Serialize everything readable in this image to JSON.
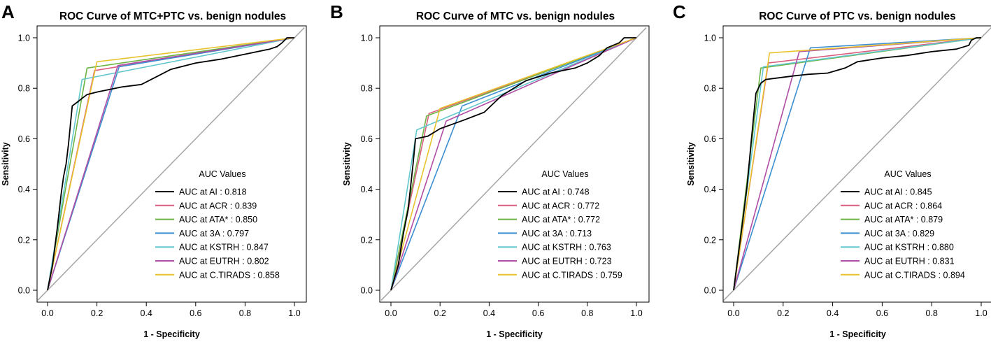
{
  "chart_data": [
    {
      "type": "line",
      "panel": "A",
      "title": "ROC Curve of MTC+PTC vs. benign nodules",
      "xlabel": "1 - Specificity",
      "ylabel": "Sensitivity",
      "xlim": [
        0,
        1
      ],
      "ylim": [
        0,
        1
      ],
      "x_ticks": [
        "0.0",
        "0.2",
        "0.4",
        "0.6",
        "0.8",
        "1.0"
      ],
      "y_ticks": [
        "0.0",
        "0.2",
        "0.4",
        "0.6",
        "0.8",
        "1.0"
      ],
      "legend_title": "AUC Values",
      "reference_line": true,
      "series": [
        {
          "name": "AUC at AI : 0.818",
          "color": "#000000",
          "points": [
            [
              0,
              0
            ],
            [
              0.02,
              0.1
            ],
            [
              0.04,
              0.25
            ],
            [
              0.055,
              0.38
            ],
            [
              0.065,
              0.45
            ],
            [
              0.075,
              0.5
            ],
            [
              0.085,
              0.58
            ],
            [
              0.095,
              0.68
            ],
            [
              0.1,
              0.73
            ],
            [
              0.12,
              0.745
            ],
            [
              0.14,
              0.76
            ],
            [
              0.16,
              0.775
            ],
            [
              0.2,
              0.785
            ],
            [
              0.25,
              0.795
            ],
            [
              0.3,
              0.805
            ],
            [
              0.38,
              0.815
            ],
            [
              0.42,
              0.835
            ],
            [
              0.5,
              0.875
            ],
            [
              0.6,
              0.9
            ],
            [
              0.7,
              0.915
            ],
            [
              0.8,
              0.935
            ],
            [
              0.9,
              0.955
            ],
            [
              0.93,
              0.965
            ],
            [
              0.95,
              0.98
            ],
            [
              0.97,
              1.0
            ],
            [
              1,
              1
            ]
          ]
        },
        {
          "name": "AUC at ACR : 0.839",
          "color": "#D95F7F",
          "points": [
            [
              0,
              0
            ],
            [
              0.19,
              0.87
            ],
            [
              1,
              1
            ]
          ]
        },
        {
          "name": "AUC at ATA* : 0.850",
          "color": "#6DB344",
          "points": [
            [
              0,
              0
            ],
            [
              0.16,
              0.88
            ],
            [
              1,
              1
            ]
          ]
        },
        {
          "name": "AUC at 3A : 0.797",
          "color": "#3D8FD1",
          "points": [
            [
              0,
              0
            ],
            [
              0.29,
              0.885
            ],
            [
              1,
              1
            ]
          ]
        },
        {
          "name": "AUC at KSTRH : 0.847",
          "color": "#62C7CC",
          "points": [
            [
              0,
              0
            ],
            [
              0.14,
              0.835
            ],
            [
              1,
              1
            ]
          ]
        },
        {
          "name": "AUC at EUTRH : 0.802",
          "color": "#B04EA5",
          "points": [
            [
              0,
              0
            ],
            [
              0.285,
              0.89
            ],
            [
              1,
              1
            ]
          ]
        },
        {
          "name": "AUC at C.TIRADS : 0.858",
          "color": "#E8C32E",
          "points": [
            [
              0,
              0
            ],
            [
              0.2,
              0.905
            ],
            [
              1,
              1
            ]
          ]
        }
      ]
    },
    {
      "type": "line",
      "panel": "B",
      "title": "ROC Curve of MTC vs. benign nodules",
      "xlabel": "1 - Specificity",
      "ylabel": "Sensitivity",
      "xlim": [
        0,
        1
      ],
      "ylim": [
        0,
        1
      ],
      "x_ticks": [
        "0.0",
        "0.2",
        "0.4",
        "0.6",
        "0.8",
        "1.0"
      ],
      "y_ticks": [
        "0.0",
        "0.2",
        "0.4",
        "0.6",
        "0.8",
        "1.0"
      ],
      "legend_title": "AUC Values",
      "reference_line": true,
      "series": [
        {
          "name": "AUC at AI : 0.748",
          "color": "#000000",
          "points": [
            [
              0,
              0
            ],
            [
              0.03,
              0.1
            ],
            [
              0.05,
              0.22
            ],
            [
              0.07,
              0.32
            ],
            [
              0.09,
              0.5
            ],
            [
              0.1,
              0.6
            ],
            [
              0.15,
              0.61
            ],
            [
              0.2,
              0.64
            ],
            [
              0.3,
              0.675
            ],
            [
              0.38,
              0.705
            ],
            [
              0.45,
              0.77
            ],
            [
              0.55,
              0.83
            ],
            [
              0.65,
              0.86
            ],
            [
              0.75,
              0.88
            ],
            [
              0.8,
              0.9
            ],
            [
              0.85,
              0.93
            ],
            [
              0.88,
              0.96
            ],
            [
              0.93,
              0.98
            ],
            [
              0.95,
              1.0
            ],
            [
              0.99,
              1.0
            ],
            [
              1,
              1
            ]
          ]
        },
        {
          "name": "AUC at ACR : 0.772",
          "color": "#D95F7F",
          "points": [
            [
              0,
              0
            ],
            [
              0.155,
              0.7
            ],
            [
              1,
              1
            ]
          ]
        },
        {
          "name": "AUC at ATA* : 0.772",
          "color": "#6DB344",
          "points": [
            [
              0,
              0
            ],
            [
              0.145,
              0.69
            ],
            [
              1,
              1
            ]
          ]
        },
        {
          "name": "AUC at 3A : 0.713",
          "color": "#3D8FD1",
          "points": [
            [
              0,
              0
            ],
            [
              0.29,
              0.73
            ],
            [
              1,
              1
            ]
          ]
        },
        {
          "name": "AUC at KSTRH : 0.763",
          "color": "#62C7CC",
          "points": [
            [
              0,
              0
            ],
            [
              0.105,
              0.635
            ],
            [
              1,
              1
            ]
          ]
        },
        {
          "name": "AUC at EUTRH : 0.723",
          "color": "#B04EA5",
          "points": [
            [
              0,
              0
            ],
            [
              0.225,
              0.67
            ],
            [
              1,
              1
            ]
          ]
        },
        {
          "name": "AUC at C.TIRADS : 0.759",
          "color": "#E8C32E",
          "points": [
            [
              0,
              0
            ],
            [
              0.2,
              0.72
            ],
            [
              1,
              1
            ]
          ]
        }
      ]
    },
    {
      "type": "line",
      "panel": "C",
      "title": "ROC Curve of PTC vs. benign nodules",
      "xlabel": "1 - Specificity",
      "ylabel": "Sensitivity",
      "xlim": [
        0,
        1
      ],
      "ylim": [
        0,
        1
      ],
      "x_ticks": [
        "0.0",
        "0.2",
        "0.4",
        "0.6",
        "0.8",
        "1.0"
      ],
      "y_ticks": [
        "0.0",
        "0.2",
        "0.4",
        "0.6",
        "0.8",
        "1.0"
      ],
      "legend_title": "AUC Values",
      "reference_line": true,
      "series": [
        {
          "name": "AUC at AI : 0.845",
          "color": "#000000",
          "points": [
            [
              0,
              0
            ],
            [
              0.02,
              0.15
            ],
            [
              0.04,
              0.3
            ],
            [
              0.055,
              0.42
            ],
            [
              0.07,
              0.58
            ],
            [
              0.08,
              0.68
            ],
            [
              0.09,
              0.78
            ],
            [
              0.1,
              0.8
            ],
            [
              0.11,
              0.82
            ],
            [
              0.13,
              0.835
            ],
            [
              0.17,
              0.84
            ],
            [
              0.25,
              0.85
            ],
            [
              0.3,
              0.855
            ],
            [
              0.38,
              0.86
            ],
            [
              0.45,
              0.88
            ],
            [
              0.5,
              0.905
            ],
            [
              0.6,
              0.92
            ],
            [
              0.7,
              0.93
            ],
            [
              0.8,
              0.945
            ],
            [
              0.9,
              0.955
            ],
            [
              0.95,
              0.97
            ],
            [
              0.96,
              0.99
            ],
            [
              0.98,
              1.0
            ],
            [
              1,
              1
            ]
          ]
        },
        {
          "name": "AUC at ACR : 0.864",
          "color": "#D95F7F",
          "points": [
            [
              0,
              0
            ],
            [
              0.14,
              0.9
            ],
            [
              1,
              1
            ]
          ]
        },
        {
          "name": "AUC at ATA* : 0.879",
          "color": "#6DB344",
          "points": [
            [
              0,
              0
            ],
            [
              0.11,
              0.88
            ],
            [
              1,
              1
            ]
          ]
        },
        {
          "name": "AUC at 3A : 0.829",
          "color": "#3D8FD1",
          "points": [
            [
              0,
              0
            ],
            [
              0.31,
              0.96
            ],
            [
              1,
              1
            ]
          ]
        },
        {
          "name": "AUC at KSTRH : 0.880",
          "color": "#62C7CC",
          "points": [
            [
              0,
              0
            ],
            [
              0.12,
              0.885
            ],
            [
              1,
              1
            ]
          ]
        },
        {
          "name": "AUC at EUTRH : 0.831",
          "color": "#B04EA5",
          "points": [
            [
              0,
              0
            ],
            [
              0.265,
              0.945
            ],
            [
              1,
              1
            ]
          ]
        },
        {
          "name": "AUC at C.TIRADS : 0.894",
          "color": "#E8C32E",
          "points": [
            [
              0,
              0
            ],
            [
              0.145,
              0.94
            ],
            [
              1,
              1
            ]
          ]
        }
      ]
    }
  ]
}
